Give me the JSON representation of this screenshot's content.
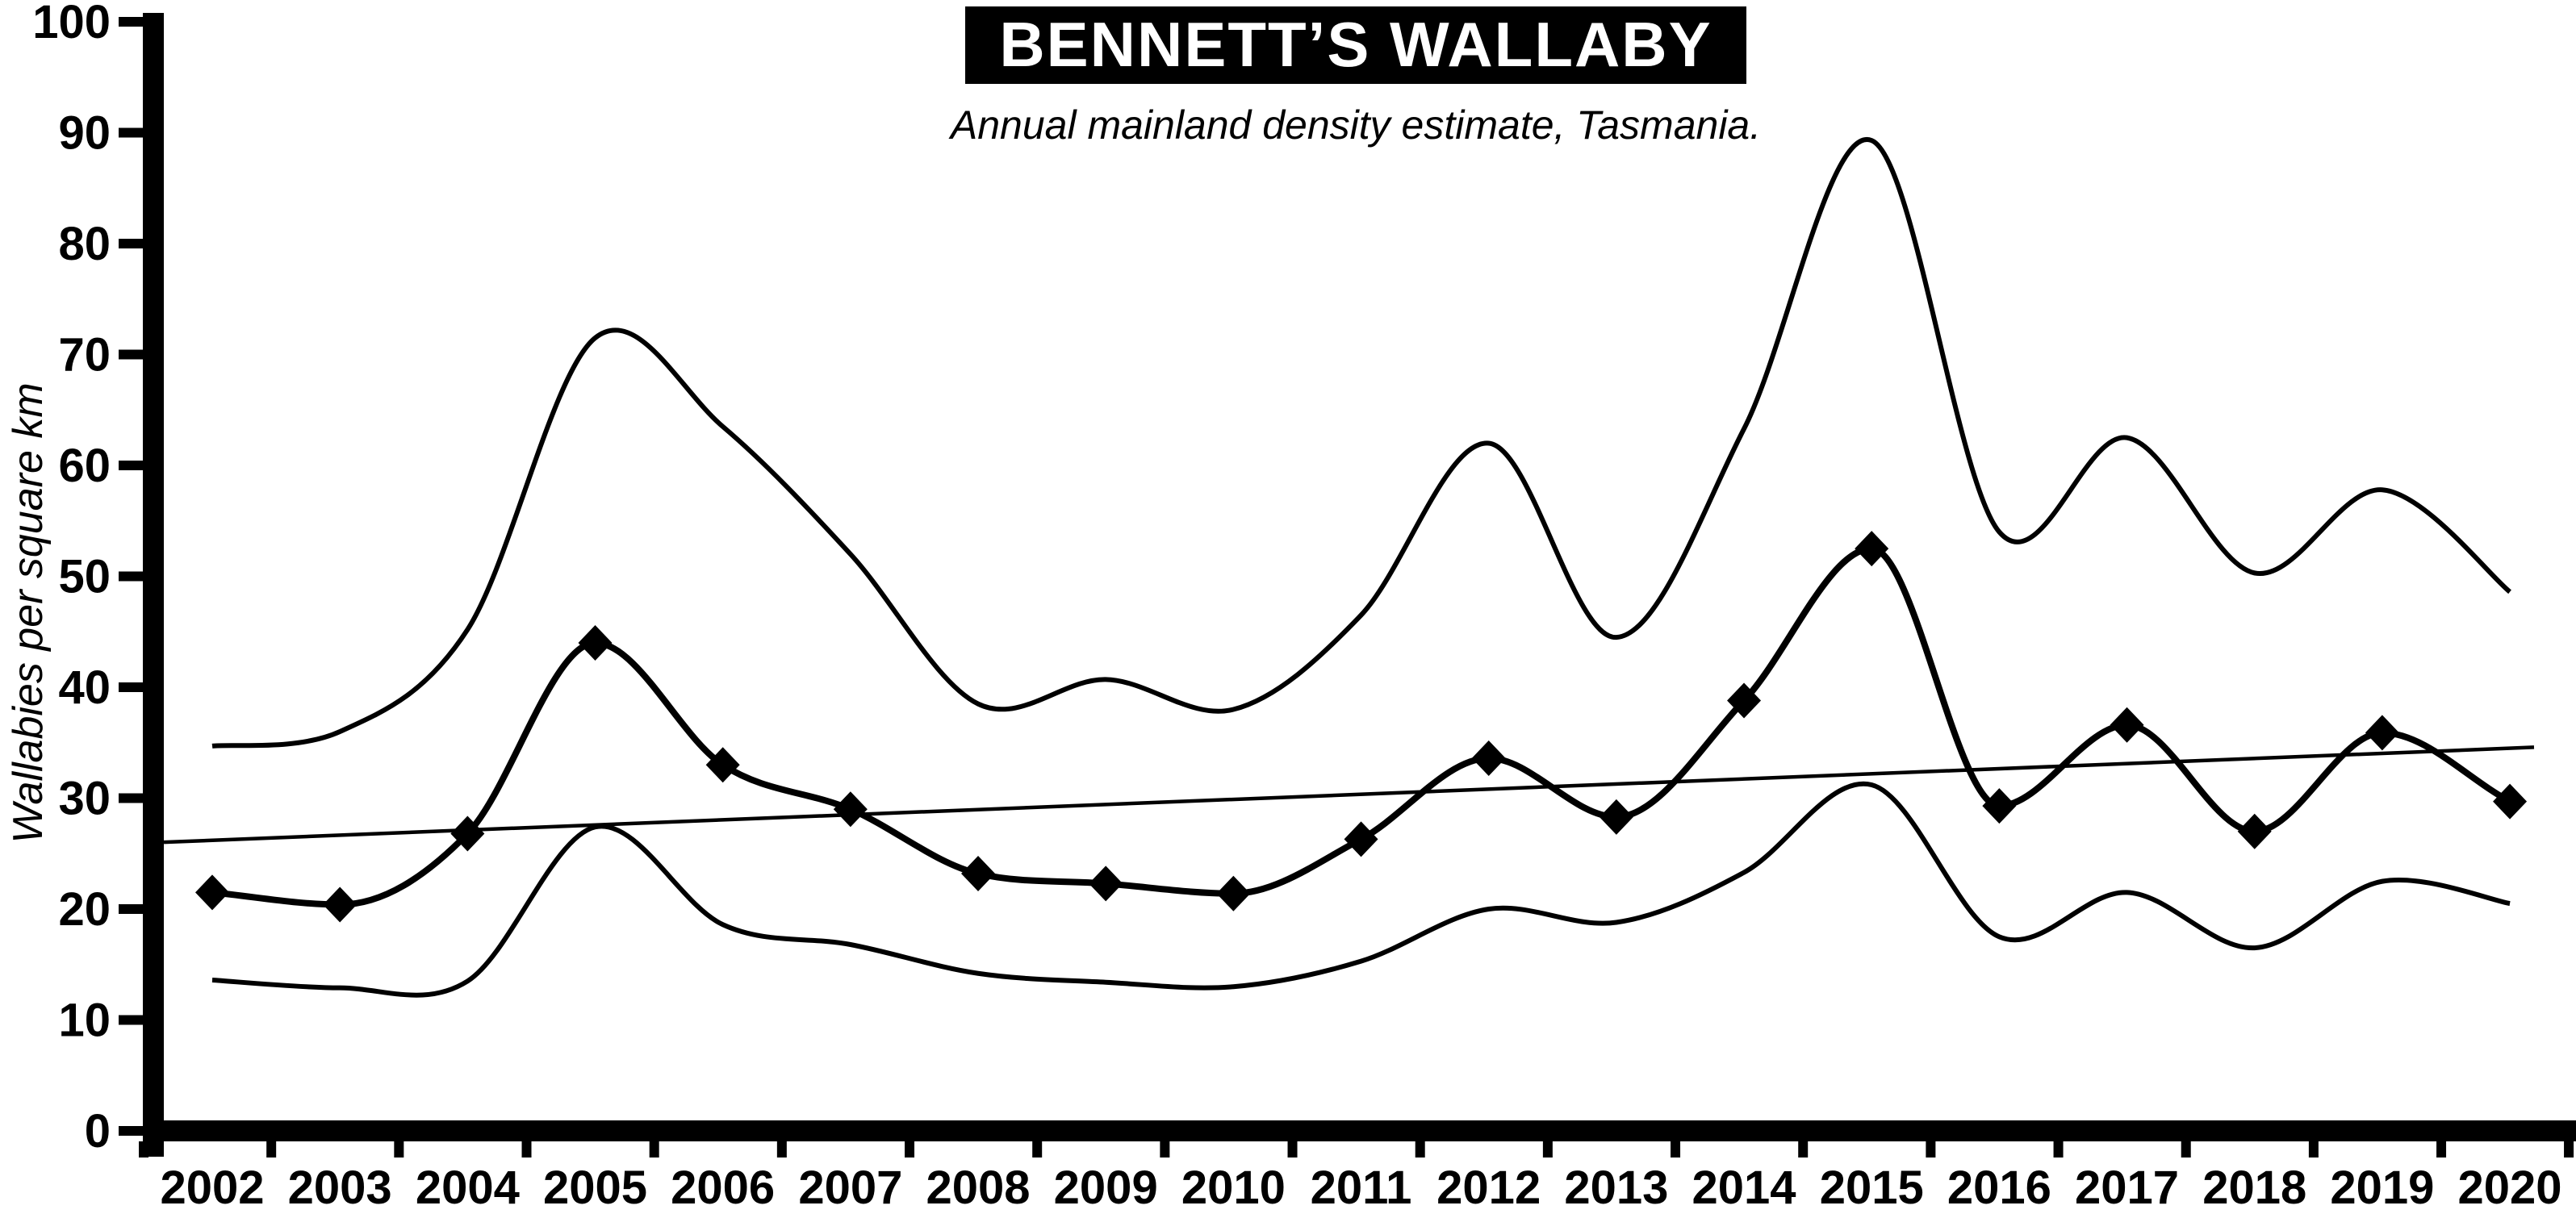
{
  "chart_data": {
    "type": "line",
    "title": "BENNETT’S WALLABY",
    "subtitle": "Annual mainland density estimate, Tasmania.",
    "ylabel": "Wallabies per square km",
    "xlabel": "",
    "ylim": [
      0,
      100
    ],
    "ytick_step": 10,
    "y_ticks": [
      0,
      10,
      20,
      30,
      40,
      50,
      60,
      70,
      80,
      90,
      100
    ],
    "categories": [
      2002,
      2003,
      2004,
      2005,
      2006,
      2007,
      2008,
      2009,
      2010,
      2011,
      2012,
      2013,
      2014,
      2015,
      2016,
      2017,
      2018,
      2019,
      2020
    ],
    "grid": "off",
    "legend_position": "none",
    "series": [
      {
        "name": "upper_confidence_band",
        "style": "smooth",
        "values": [
          34.7,
          36.0,
          45.2,
          71.5,
          63.5,
          52.0,
          38.5,
          40.7,
          38.0,
          46.5,
          62.0,
          44.5,
          63.3,
          89.3,
          54.0,
          62.5,
          50.3,
          57.8,
          48.6
        ]
      },
      {
        "name": "density_estimate",
        "style": "smooth_with_diamond_markers",
        "values": [
          21.5,
          20.4,
          26.8,
          44.0,
          33.0,
          29.0,
          23.2,
          22.3,
          21.4,
          26.3,
          33.6,
          28.3,
          38.8,
          52.5,
          29.3,
          36.6,
          27.0,
          35.9,
          29.7
        ]
      },
      {
        "name": "lower_confidence_band",
        "style": "smooth",
        "values": [
          13.6,
          12.9,
          13.5,
          27.4,
          18.6,
          16.8,
          14.2,
          13.4,
          13.0,
          15.3,
          20.0,
          18.8,
          23.3,
          31.2,
          17.5,
          21.5,
          16.5,
          22.5,
          20.5
        ]
      },
      {
        "name": "trend_line",
        "style": "linear",
        "start": {
          "year": 2002,
          "value": 26.2
        },
        "end": {
          "year": 2020,
          "value": 34.5
        }
      }
    ],
    "colors": {
      "line": "#000000",
      "background": "#ffffff",
      "title_background": "#000000",
      "title_foreground": "#ffffff"
    }
  }
}
